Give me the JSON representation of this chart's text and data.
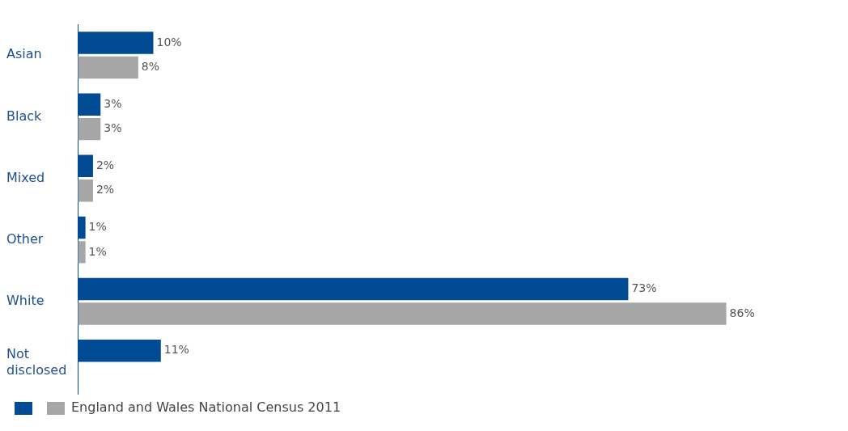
{
  "chart_data": {
    "type": "bar",
    "orientation": "horizontal",
    "categories": [
      "Asian",
      "Black",
      "Mixed",
      "Other",
      "White",
      "Not disclosed"
    ],
    "series": [
      {
        "color": "#004b93",
        "values": [
          10,
          3,
          2,
          1,
          73,
          11
        ],
        "value_labels": [
          "10%",
          "3%",
          "2%",
          "1%",
          "73%",
          "11%"
        ]
      },
      {
        "name": "England and Wales National Census 2011",
        "color": "#a6a6a6",
        "values": [
          8,
          3,
          2,
          1,
          86,
          null
        ],
        "value_labels": [
          "8%",
          "3%",
          "2%",
          "1%",
          "86%",
          null
        ]
      }
    ],
    "tick_labels": "y",
    "grid": false,
    "legend": "bottom left"
  }
}
